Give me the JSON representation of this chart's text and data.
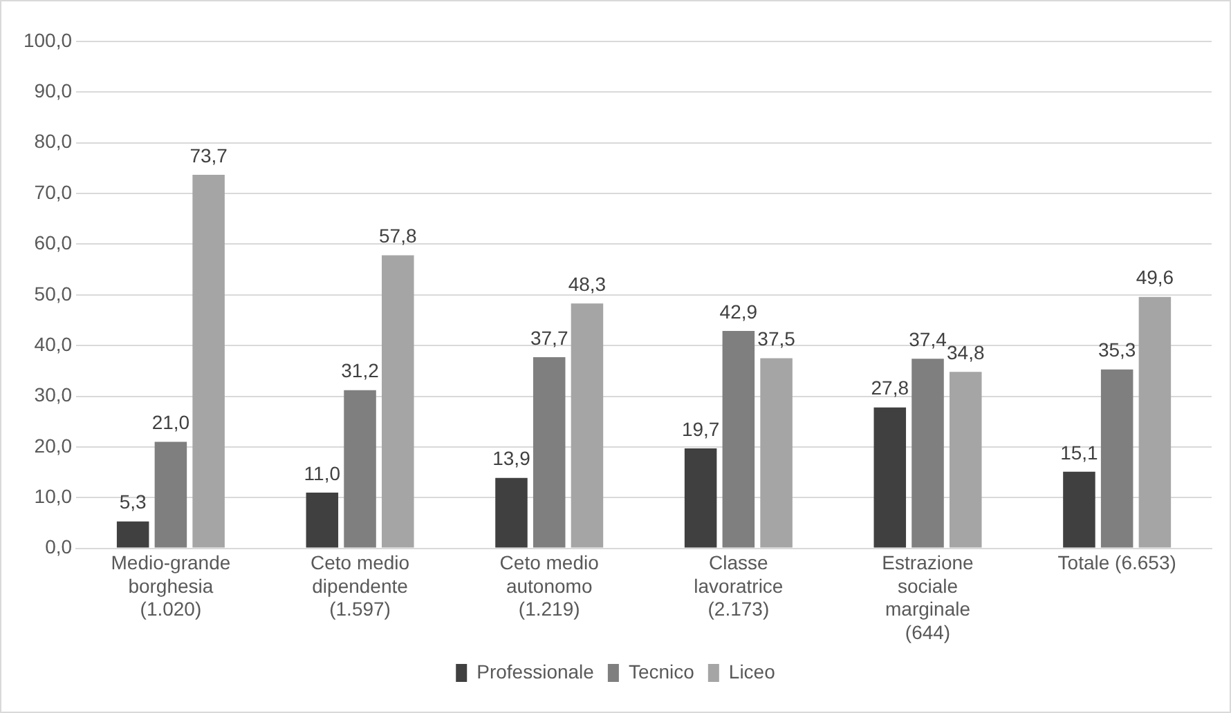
{
  "chart_data": {
    "type": "bar",
    "categories": [
      "Medio-grande borghesia (1.020)",
      "Ceto medio dipendente (1.597)",
      "Ceto medio autonomo (1.219)",
      "Classe lavoratrice (2.173)",
      "Estrazione sociale marginale (644)",
      "Totale (6.653)"
    ],
    "series": [
      {
        "name": "Professionale",
        "color": "#404040",
        "values": [
          5.3,
          11.0,
          13.9,
          19.7,
          27.8,
          15.1
        ],
        "value_labels": [
          "5,3",
          "11,0",
          "13,9",
          "19,7",
          "27,8",
          "15,1"
        ]
      },
      {
        "name": "Tecnico",
        "color": "#7f7f7f",
        "values": [
          21.0,
          31.2,
          37.7,
          42.9,
          37.4,
          35.3
        ],
        "value_labels": [
          "21,0",
          "31,2",
          "37,7",
          "42,9",
          "37,4",
          "35,3"
        ]
      },
      {
        "name": "Liceo",
        "color": "#a5a5a5",
        "values": [
          73.7,
          57.8,
          48.3,
          37.5,
          34.8,
          49.6
        ],
        "value_labels": [
          "73,7",
          "57,8",
          "48,3",
          "37,5",
          "34,8",
          "49,6"
        ]
      }
    ],
    "ylim": [
      0,
      100
    ],
    "yticks": [
      {
        "value": 0,
        "label": "0,0"
      },
      {
        "value": 10,
        "label": "10,0"
      },
      {
        "value": 20,
        "label": "20,0"
      },
      {
        "value": 30,
        "label": "30,0"
      },
      {
        "value": 40,
        "label": "40,0"
      },
      {
        "value": 50,
        "label": "50,0"
      },
      {
        "value": 60,
        "label": "60,0"
      },
      {
        "value": 70,
        "label": "70,0"
      },
      {
        "value": 80,
        "label": "80,0"
      },
      {
        "value": 90,
        "label": "90,0"
      },
      {
        "value": 100,
        "label": "100,0"
      }
    ],
    "grid": "y",
    "legend": "bottom"
  }
}
